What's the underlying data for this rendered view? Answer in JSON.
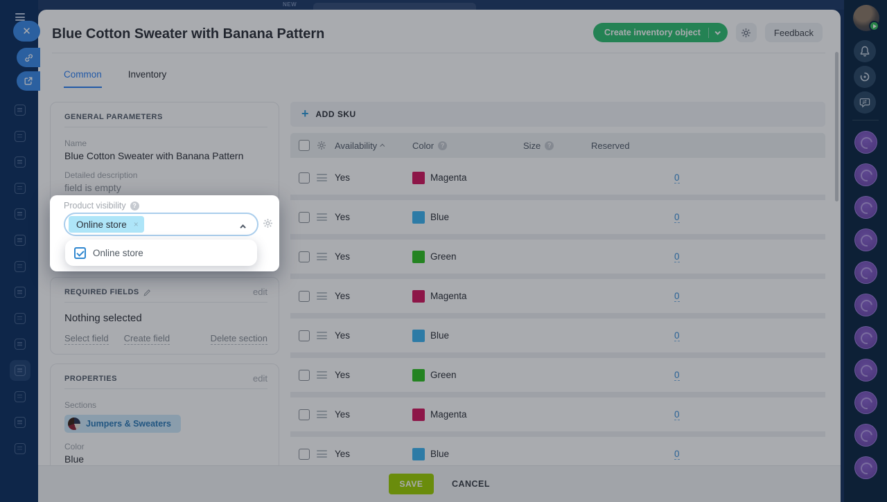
{
  "chrome": {
    "new_badge": "NEW"
  },
  "left_rail": {
    "items": [
      {
        "name": "news"
      },
      {
        "name": "automation"
      },
      {
        "name": "calendar"
      },
      {
        "name": "documents"
      },
      {
        "name": "sites"
      },
      {
        "name": "store"
      },
      {
        "name": "mail"
      },
      {
        "name": "employees"
      },
      {
        "name": "tasks"
      },
      {
        "name": "messenger"
      },
      {
        "name": "crm",
        "active": true
      },
      {
        "name": "schedule"
      },
      {
        "name": "warehouse"
      },
      {
        "name": "profile"
      }
    ]
  },
  "right_rail": {
    "buttons": [
      "notifications",
      "copilot",
      "conversations"
    ],
    "market_items": [
      "market-app",
      "market-app",
      "market-app",
      "market-app",
      "market-app",
      "market-app",
      "market-app",
      "market-app",
      "market-app",
      "market-app",
      "market-app"
    ]
  },
  "modal": {
    "title": "Blue Cotton Sweater with Banana Pattern",
    "actions": {
      "create_label": "Create inventory object",
      "feedback_label": "Feedback"
    },
    "tabs": [
      {
        "label": "Common",
        "active": true
      },
      {
        "label": "Inventory",
        "active": false
      }
    ],
    "general": {
      "section_title": "GENERAL PARAMETERS",
      "name_label": "Name",
      "name_value": "Blue Cotton Sweater with Banana Pattern",
      "description_label": "Detailed description",
      "description_value": "field is empty"
    },
    "visibility": {
      "label": "Product visibility",
      "selected_tag": "Online store",
      "remove_glyph": "×",
      "option": "Online store",
      "option_checked": true
    },
    "required": {
      "section_title": "REQUIRED FIELDS",
      "edit_label": "edit",
      "empty_text": "Nothing selected",
      "links": [
        "Select field",
        "Create field",
        "Delete section"
      ]
    },
    "properties": {
      "section_title": "PROPERTIES",
      "edit_label": "edit",
      "sections_label": "Sections",
      "section_tag": "Jumpers & Sweaters",
      "color_label": "Color",
      "color_value": "Blue"
    },
    "sku": {
      "add_label": "ADD SKU",
      "plus_glyph": "+",
      "columns": [
        "Availability",
        "Color",
        "Size",
        "Reserved"
      ],
      "rows": [
        {
          "availability": "Yes",
          "color_name": "Magenta",
          "color_hex": "#d4175e",
          "reserved": "0"
        },
        {
          "availability": "Yes",
          "color_name": "Blue",
          "color_hex": "#3eb5f1",
          "reserved": "0"
        },
        {
          "availability": "Yes",
          "color_name": "Green",
          "color_hex": "#2fc022",
          "reserved": "0"
        },
        {
          "availability": "Yes",
          "color_name": "Magenta",
          "color_hex": "#d4175e",
          "reserved": "0"
        },
        {
          "availability": "Yes",
          "color_name": "Blue",
          "color_hex": "#3eb5f1",
          "reserved": "0"
        },
        {
          "availability": "Yes",
          "color_name": "Green",
          "color_hex": "#2fc022",
          "reserved": "0"
        },
        {
          "availability": "Yes",
          "color_name": "Magenta",
          "color_hex": "#d4175e",
          "reserved": "0"
        },
        {
          "availability": "Yes",
          "color_name": "Blue",
          "color_hex": "#3eb5f1",
          "reserved": "0"
        }
      ]
    },
    "footer": {
      "save_label": "SAVE",
      "cancel_label": "CANCEL"
    }
  },
  "colors": {
    "accent_blue": "#2d7ff2",
    "create_green": "#2fbf71",
    "save_green": "#9dcf00",
    "link_blue": "#3a8fd8",
    "tag_cyan": "#aee5f8",
    "rail_navy": "#0e3060",
    "right_rail_navy": "#0b2742",
    "market_purple": "#7e57c2",
    "swatch_magenta": "#d4175e",
    "swatch_blue": "#3eb5f1",
    "swatch_green": "#2fc022"
  }
}
